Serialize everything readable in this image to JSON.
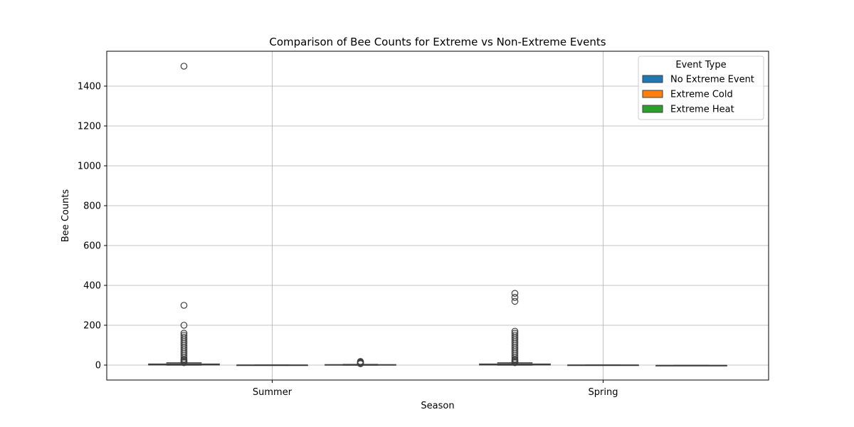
{
  "chart_data": {
    "type": "box",
    "title": "Comparison of Bee Counts for Extreme vs Non-Extreme Events",
    "xlabel": "Season",
    "ylabel": "Bee Counts",
    "categories": [
      "Summer",
      "Spring"
    ],
    "ylim": [
      -75,
      1575
    ],
    "yticks": [
      0,
      200,
      400,
      600,
      800,
      1000,
      1200,
      1400
    ],
    "grid": true,
    "legend": {
      "title": "Event Type",
      "placement": "top-right"
    },
    "series": [
      {
        "name": "No Extreme Event",
        "color": "#1f77b4",
        "boxes": [
          {
            "category": "Summer",
            "whisker_low": 0,
            "q1": 1,
            "median": 2,
            "q3": 5,
            "whisker_high": 11,
            "outliers": [
              1500,
              300,
              200,
              160,
              150,
              140,
              130,
              120,
              110,
              100,
              90,
              80,
              70,
              60,
              50,
              40,
              30,
              25,
              20,
              15,
              12
            ]
          },
          {
            "category": "Spring",
            "whisker_low": 0,
            "q1": 1,
            "median": 2,
            "q3": 5,
            "whisker_high": 11,
            "outliers": [
              360,
              340,
              320,
              170,
              160,
              150,
              140,
              130,
              120,
              110,
              100,
              90,
              80,
              70,
              60,
              50,
              40,
              30,
              25,
              20,
              15,
              12
            ]
          }
        ]
      },
      {
        "name": "Extreme Cold",
        "color": "#ff7f0e",
        "boxes": [
          {
            "category": "Summer",
            "whisker_low": 0,
            "q1": 0,
            "median": 0,
            "q3": 0,
            "whisker_high": 0,
            "outliers": []
          },
          {
            "category": "Spring",
            "whisker_low": 0,
            "q1": 0,
            "median": 0,
            "q3": 0,
            "whisker_high": 0,
            "outliers": []
          }
        ]
      },
      {
        "name": "Extreme Heat",
        "color": "#2ca02c",
        "boxes": [
          {
            "category": "Summer",
            "whisker_low": 0,
            "q1": 0,
            "median": 1,
            "q3": 2,
            "whisker_high": 3,
            "outliers": [
              18,
              15,
              12,
              9,
              7
            ]
          },
          {
            "category": "Spring",
            "whisker_low": -2,
            "q1": -2,
            "median": -2,
            "q3": -2,
            "whisker_high": -2,
            "outliers": []
          }
        ]
      }
    ]
  }
}
